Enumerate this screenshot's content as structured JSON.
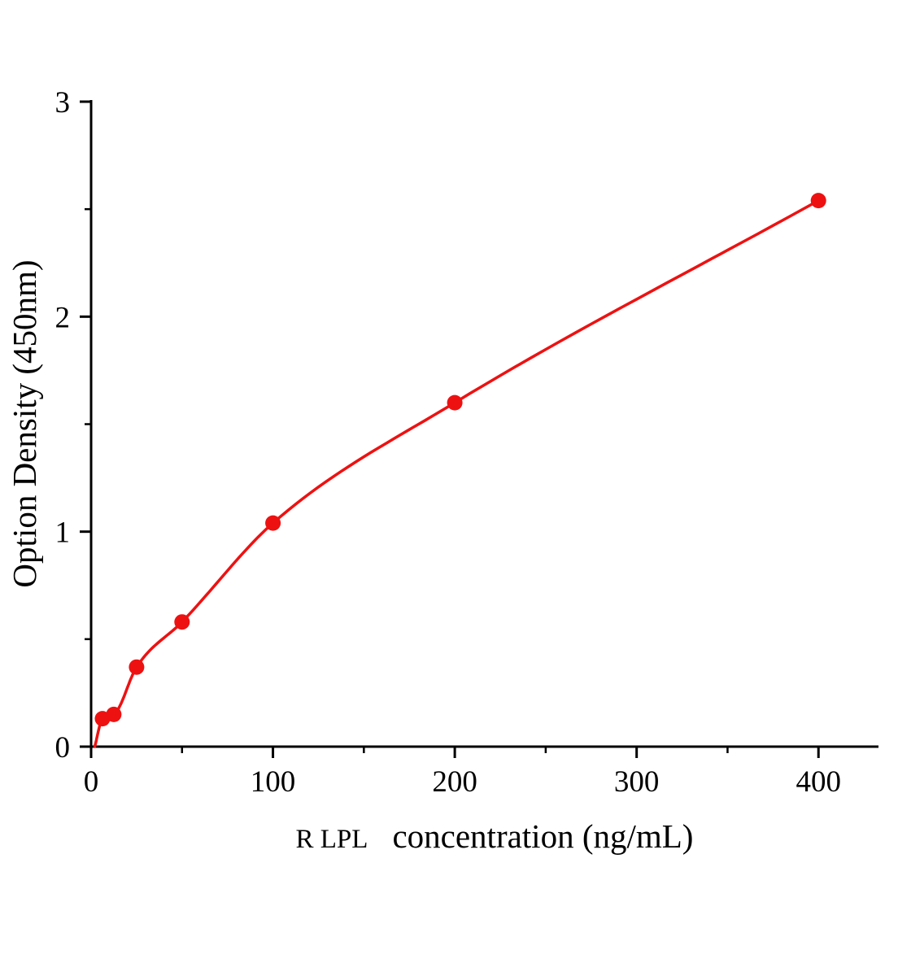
{
  "chart_data": {
    "type": "scatter",
    "title": "",
    "xlabel_prefix": "R LPL",
    "xlabel": "concentration (ng/mL)",
    "ylabel": "Option Density (450nm)",
    "xlim": [
      0,
      433
    ],
    "ylim": [
      0,
      3
    ],
    "x_ticks": [
      0,
      100,
      200,
      300,
      400
    ],
    "y_ticks": [
      0,
      1,
      2,
      3
    ],
    "grid": false,
    "legend": "none",
    "marker_color": "#ee1111",
    "curve_color": "#ee1111",
    "axis_color": "#000000",
    "curve_start": {
      "x": 2,
      "y": 0.0
    },
    "points": [
      {
        "x": 6.25,
        "y": 0.13
      },
      {
        "x": 12.5,
        "y": 0.15
      },
      {
        "x": 25,
        "y": 0.37
      },
      {
        "x": 50,
        "y": 0.58
      },
      {
        "x": 100,
        "y": 1.04
      },
      {
        "x": 200,
        "y": 1.6
      },
      {
        "x": 400,
        "y": 2.54
      }
    ]
  }
}
